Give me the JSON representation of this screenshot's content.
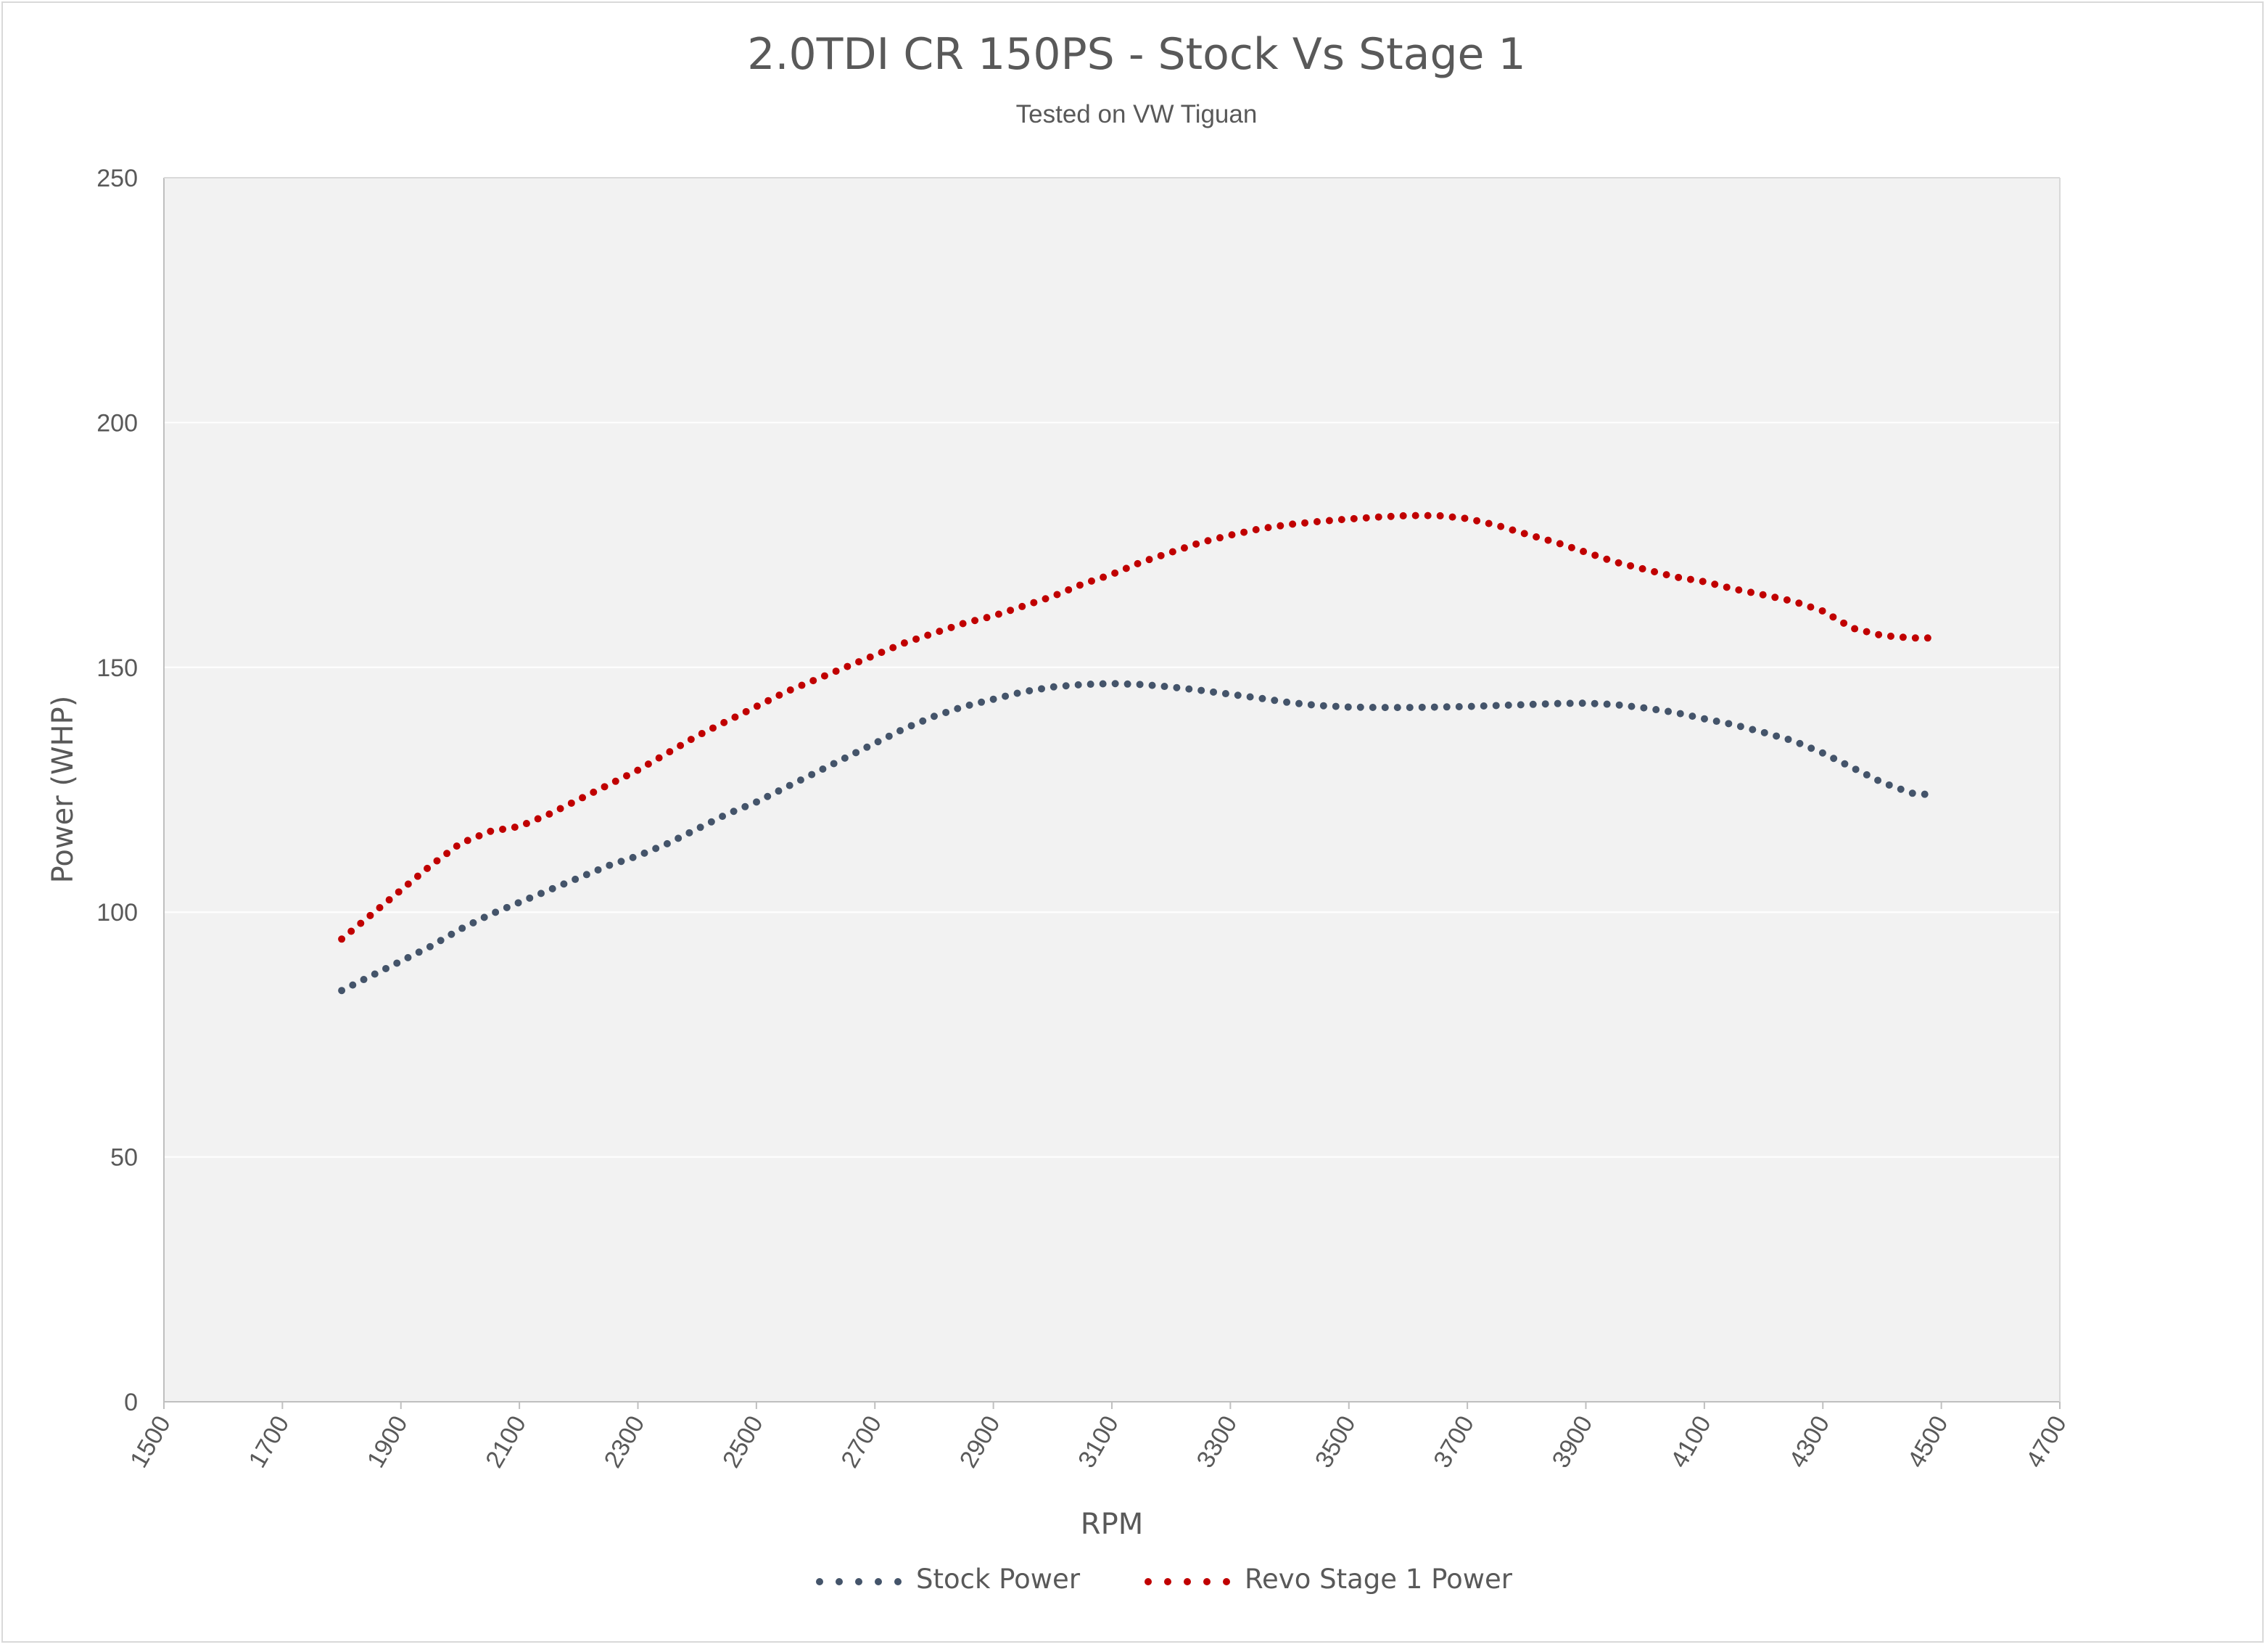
{
  "chart_data": {
    "type": "line",
    "title": "2.0TDI CR 150PS - Stock Vs Stage 1",
    "subtitle": "Tested on VW Tiguan",
    "xlabel": "RPM",
    "ylabel": "Power (WHP)",
    "xlim": [
      1500,
      4700
    ],
    "ylim": [
      0,
      250
    ],
    "xticks": [
      1500,
      1700,
      1900,
      2100,
      2300,
      2500,
      2700,
      2900,
      3100,
      3300,
      3500,
      3700,
      3900,
      4100,
      4300,
      4500,
      4700
    ],
    "yticks": [
      0,
      50,
      100,
      150,
      200,
      250
    ],
    "grid": "horizontal",
    "legend": "bottom",
    "x": [
      1800,
      1850,
      1900,
      1950,
      2000,
      2050,
      2100,
      2150,
      2200,
      2250,
      2300,
      2350,
      2400,
      2450,
      2500,
      2550,
      2600,
      2650,
      2700,
      2750,
      2800,
      2850,
      2900,
      2950,
      3000,
      3050,
      3100,
      3150,
      3200,
      3250,
      3300,
      3350,
      3400,
      3450,
      3500,
      3550,
      3600,
      3650,
      3700,
      3750,
      3800,
      3850,
      3900,
      3950,
      4000,
      4050,
      4100,
      4150,
      4200,
      4250,
      4300,
      4350,
      4400,
      4450,
      4480
    ],
    "series": [
      {
        "name": "Stock Power",
        "color": "#44546a",
        "values": [
          84,
          87,
          90,
          93,
          96.5,
          99.5,
          102,
          104.5,
          107,
          109.5,
          111.5,
          114,
          117,
          120,
          122.5,
          125.5,
          128.5,
          131.5,
          134.5,
          137.5,
          140,
          142,
          143.5,
          145,
          146,
          146.5,
          146.7,
          146.5,
          146,
          145.3,
          144.5,
          143.7,
          142.8,
          142.2,
          141.9,
          141.8,
          141.8,
          141.9,
          142,
          142.2,
          142.4,
          142.6,
          142.7,
          142.4,
          141.7,
          140.8,
          139.5,
          138.3,
          136.7,
          135,
          132.5,
          129.5,
          126.5,
          124.3,
          124
        ]
      },
      {
        "name": "Revo Stage 1 Power",
        "color": "#c00000",
        "values": [
          94.5,
          99.5,
          104.5,
          109.5,
          114,
          116.5,
          117.5,
          120,
          123,
          126,
          129,
          132.5,
          136,
          139,
          142,
          145,
          147.5,
          150,
          152.5,
          155,
          157,
          159,
          160.5,
          162.5,
          164.5,
          167,
          169,
          171.5,
          173.5,
          175.5,
          177,
          178.3,
          179.2,
          179.8,
          180.3,
          180.7,
          181,
          181,
          180.4,
          179,
          177.2,
          175.5,
          173.5,
          171.5,
          170,
          168.5,
          167.5,
          166,
          164.8,
          163.5,
          161.5,
          158,
          156.5,
          156,
          156
        ]
      }
    ]
  }
}
